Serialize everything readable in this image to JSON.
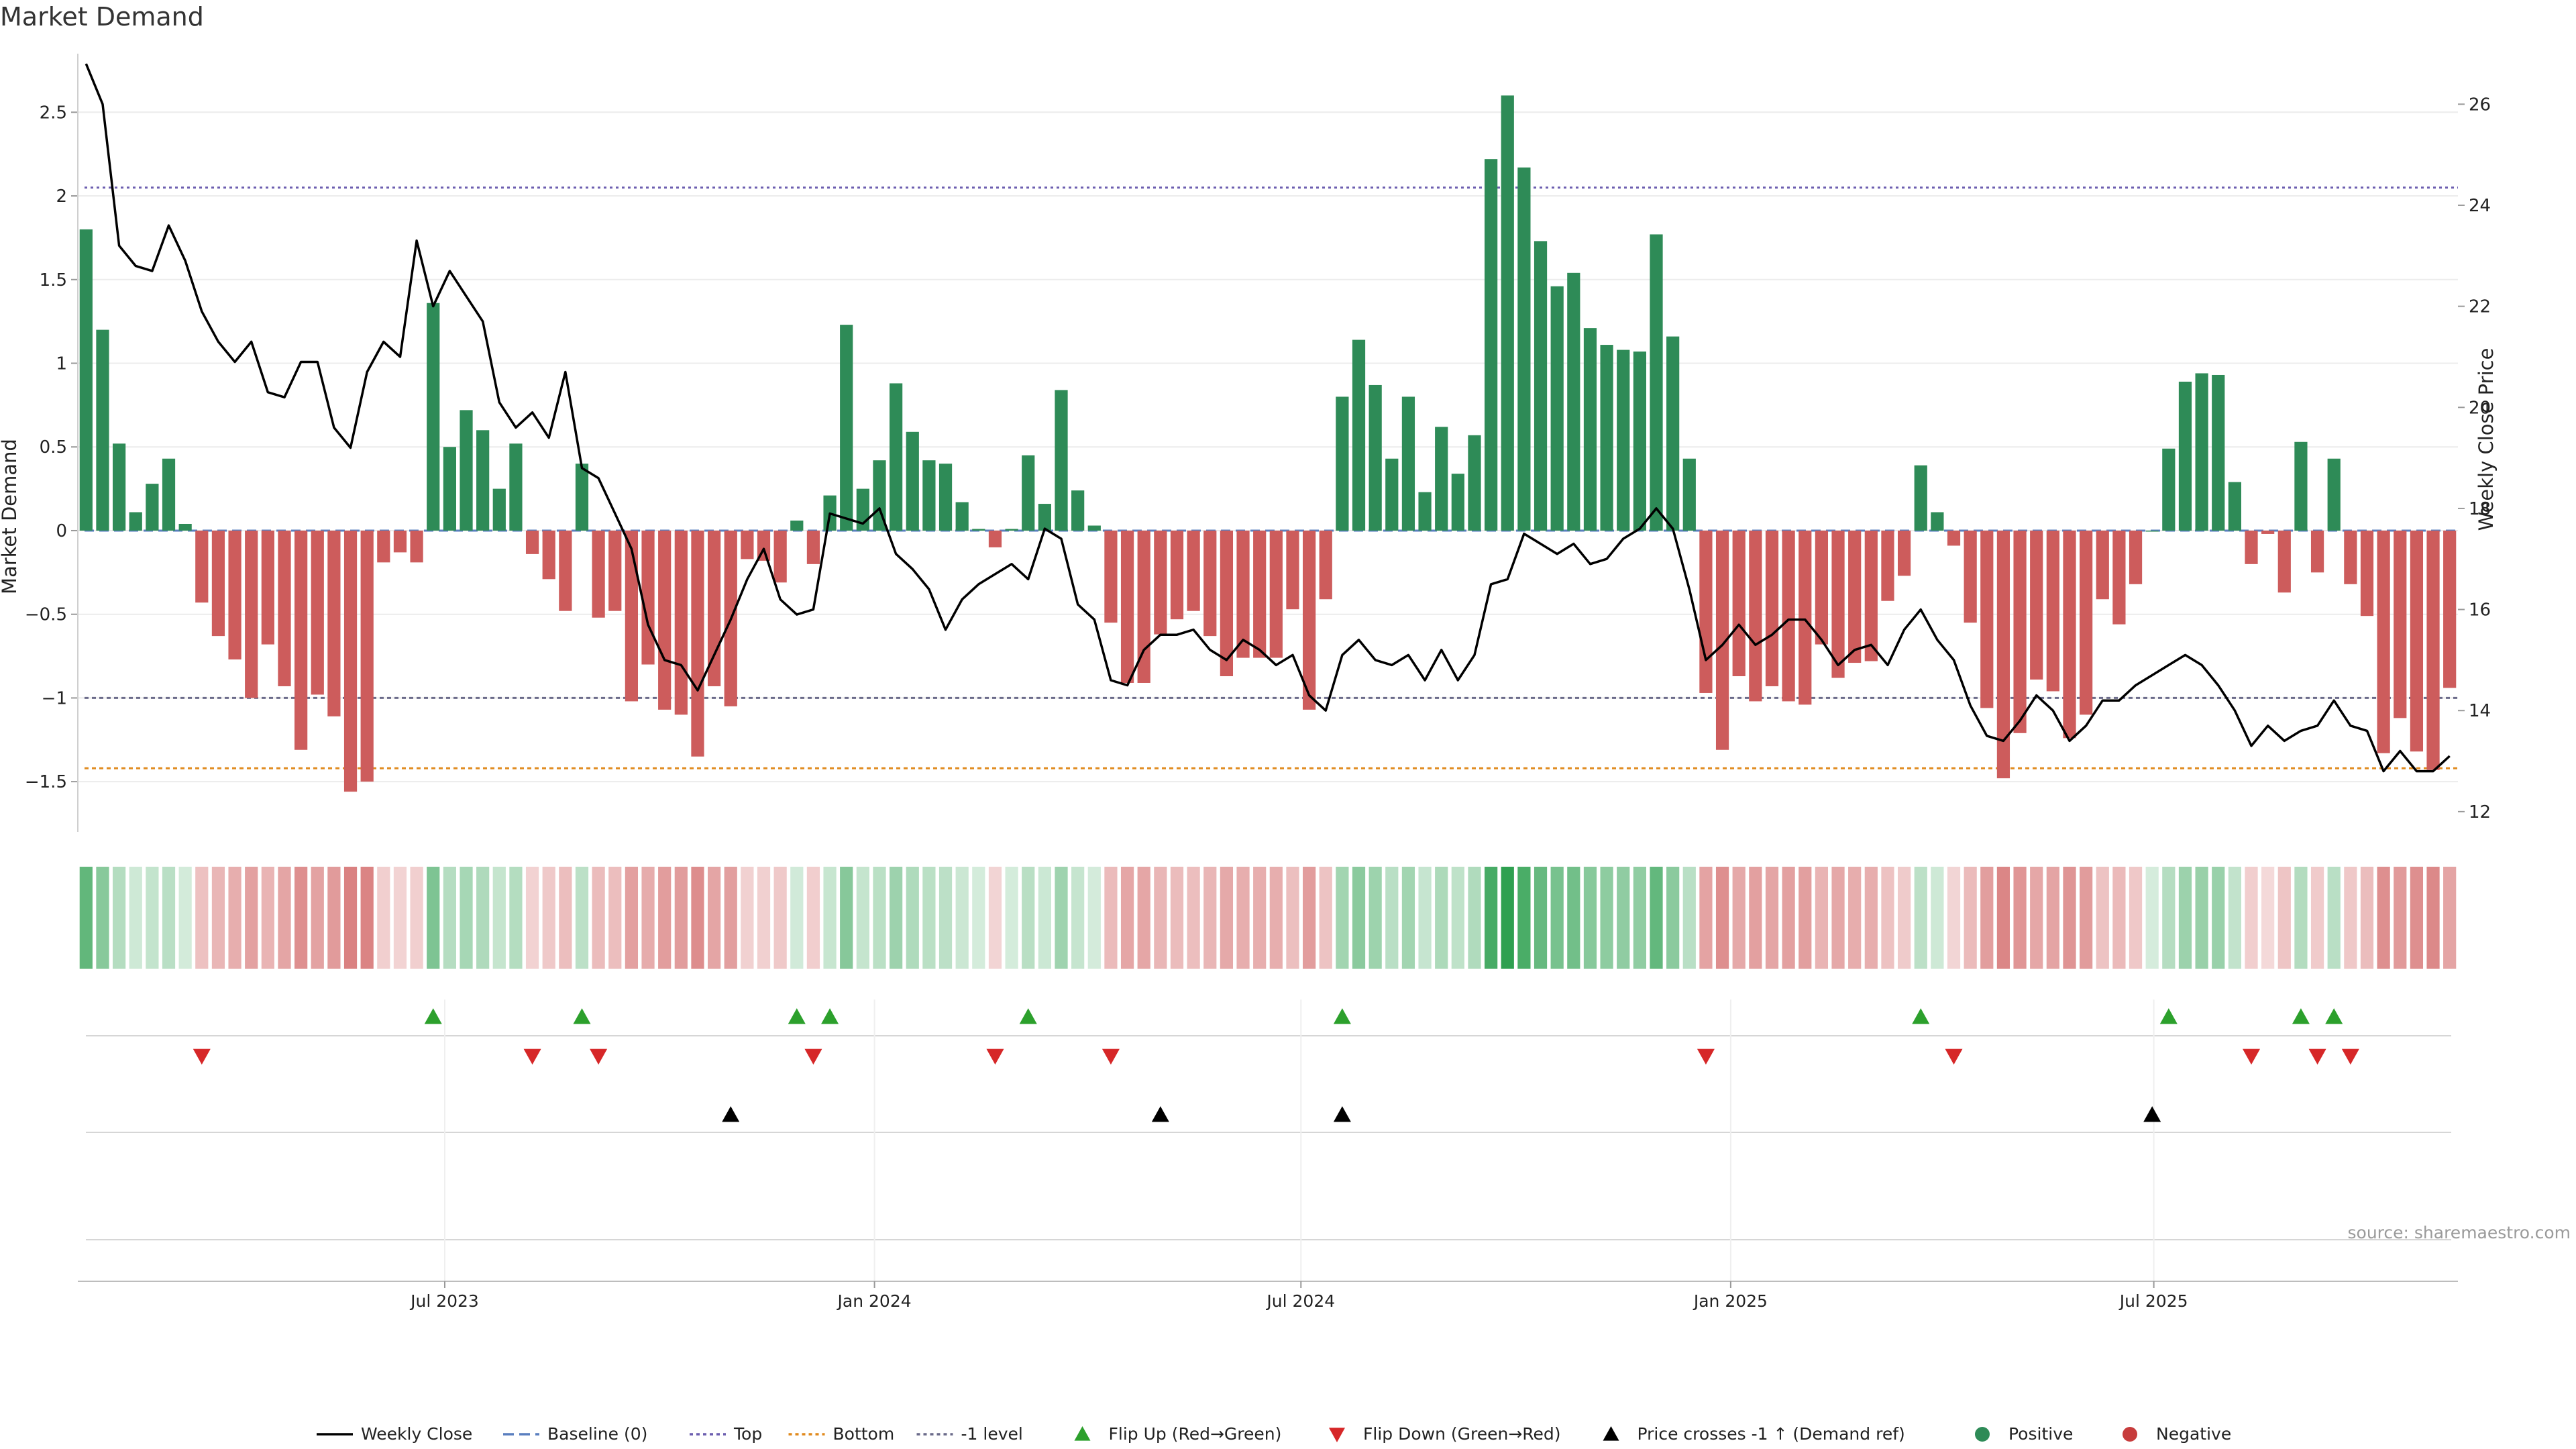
{
  "chart_data": {
    "type": "bar",
    "title": "Market Demand",
    "ylabel": "Market Demand",
    "y2label": "Weekly Close Price",
    "ylim": [
      -1.8,
      2.85
    ],
    "y2lim": [
      11.6,
      27.0
    ],
    "y_ticks": [
      -1.5,
      -1,
      -0.5,
      0,
      0.5,
      1,
      1.5,
      2,
      2.5
    ],
    "y_tick_labels": [
      "−1.5",
      "−1",
      "−0.5",
      "0",
      "0.5",
      "1",
      "1.5",
      "2",
      "2.5"
    ],
    "y2_ticks": [
      12,
      14,
      16,
      18,
      20,
      22,
      24,
      26
    ],
    "y2_tick_labels": [
      "12",
      "14",
      "16",
      "18",
      "20",
      "22",
      "24",
      "26"
    ],
    "x_ticks": [
      22.2,
      48.2,
      74.0,
      100.0,
      125.6
    ],
    "x_tick_labels": [
      "Jul 2023",
      "Jan 2024",
      "Jul 2024",
      "Jan 2025",
      "Jul 2025"
    ],
    "reference_lines": {
      "top": 2.05,
      "bottom": -1.42,
      "minus_one": -1.0
    },
    "demand": [
      1.8,
      1.2,
      0.52,
      0.11,
      0.28,
      0.43,
      0.04,
      -0.43,
      -0.63,
      -0.77,
      -1.0,
      -0.68,
      -0.93,
      -1.31,
      -0.98,
      -1.11,
      -1.56,
      -1.5,
      -0.19,
      -0.13,
      -0.19,
      1.36,
      0.5,
      0.72,
      0.6,
      0.25,
      0.52,
      -0.14,
      -0.29,
      -0.48,
      0.4,
      -0.52,
      -0.48,
      -1.02,
      -0.8,
      -1.07,
      -1.1,
      -1.35,
      -0.93,
      -1.05,
      -0.17,
      -0.18,
      -0.31,
      0.06,
      -0.2,
      0.21,
      1.23,
      0.25,
      0.42,
      0.88,
      0.59,
      0.42,
      0.4,
      0.17,
      0.01,
      -0.1,
      0.01,
      0.45,
      0.16,
      0.84,
      0.24,
      0.03,
      -0.55,
      -0.91,
      -0.91,
      -0.62,
      -0.53,
      -0.48,
      -0.63,
      -0.87,
      -0.76,
      -0.76,
      -0.76,
      -0.47,
      -1.07,
      -0.41,
      0.8,
      1.14,
      0.87,
      0.43,
      0.8,
      0.23,
      0.62,
      0.34,
      0.57,
      2.22,
      2.6,
      2.17,
      1.73,
      1.46,
      1.54,
      1.21,
      1.11,
      1.08,
      1.07,
      1.77,
      1.16,
      0.43,
      -0.97,
      -1.31,
      -0.87,
      -1.02,
      -0.93,
      -1.02,
      -1.04,
      -0.68,
      -0.88,
      -0.79,
      -0.78,
      -0.42,
      -0.27,
      0.39,
      0.11,
      -0.09,
      -0.55,
      -1.06,
      -1.48,
      -1.21,
      -0.89,
      -0.96,
      -1.24,
      -1.1,
      -0.41,
      -0.56,
      -0.32,
      0.0,
      0.49,
      0.89,
      0.94,
      0.93,
      0.29,
      -0.2,
      -0.02,
      -0.37,
      0.53,
      -0.25,
      0.43,
      -0.32,
      -0.51,
      -1.33,
      -1.12,
      -1.32,
      -1.43,
      -0.94
    ],
    "weekly_close": [
      26.8,
      26.0,
      23.2,
      22.8,
      22.7,
      23.6,
      22.9,
      21.9,
      21.3,
      20.9,
      21.3,
      20.3,
      20.2,
      20.9,
      20.9,
      19.6,
      19.2,
      20.7,
      21.3,
      21.0,
      23.3,
      22.0,
      22.7,
      22.2,
      21.7,
      20.1,
      19.6,
      19.9,
      19.4,
      20.7,
      18.8,
      18.6,
      17.9,
      17.2,
      15.7,
      15.0,
      14.9,
      14.4,
      15.1,
      15.8,
      16.6,
      17.2,
      16.2,
      15.9,
      16.0,
      17.9,
      17.8,
      17.7,
      18.0,
      17.1,
      16.8,
      16.4,
      15.6,
      16.2,
      16.5,
      16.7,
      16.9,
      16.6,
      17.6,
      17.4,
      16.1,
      15.8,
      14.6,
      14.5,
      15.2,
      15.5,
      15.5,
      15.6,
      15.2,
      15.0,
      15.4,
      15.2,
      14.9,
      15.1,
      14.3,
      14.0,
      15.1,
      15.4,
      15.0,
      14.9,
      15.1,
      14.6,
      15.2,
      14.6,
      15.1,
      16.5,
      16.6,
      17.5,
      17.3,
      17.1,
      17.3,
      16.9,
      17.0,
      17.4,
      17.6,
      18.0,
      17.6,
      16.4,
      15.0,
      15.3,
      15.7,
      15.3,
      15.5,
      15.8,
      15.8,
      15.4,
      14.9,
      15.2,
      15.3,
      14.9,
      15.6,
      16.0,
      15.4,
      15.0,
      14.1,
      13.5,
      13.4,
      13.8,
      14.3,
      14.0,
      13.4,
      13.7,
      14.2,
      14.2,
      14.5,
      14.7,
      14.9,
      15.1,
      14.9,
      14.5,
      14.0,
      13.3,
      13.7,
      13.4,
      13.6,
      13.7,
      14.2,
      13.7,
      13.6,
      12.8,
      13.2,
      12.8,
      12.8,
      13.1
    ],
    "flip_up": [
      21,
      30,
      43,
      45,
      57,
      76,
      111,
      126,
      134,
      136
    ],
    "flip_down": [
      7,
      27,
      31,
      44,
      55,
      62,
      98,
      113,
      131,
      135,
      137
    ],
    "price_cross": [
      39,
      65,
      76,
      125
    ],
    "legend": [
      {
        "label": "Weekly Close",
        "kind": "line",
        "color": "#000000"
      },
      {
        "label": "Baseline (0)",
        "kind": "dash",
        "color": "#5a7fbf"
      },
      {
        "label": "Top",
        "kind": "dot",
        "color": "#6d5fb0"
      },
      {
        "label": "Bottom",
        "kind": "dot",
        "color": "#e08a1e"
      },
      {
        "label": "-1 level",
        "kind": "dot",
        "color": "#6b6b8a"
      },
      {
        "label": "Flip Up (Red→Green)",
        "kind": "tri-up",
        "color": "#2ca02c"
      },
      {
        "label": "Flip Down (Green→Red)",
        "kind": "tri-down",
        "color": "#d62728"
      },
      {
        "label": "Price crosses -1 ↑ (Demand ref)",
        "kind": "tri-up",
        "color": "#000000"
      },
      {
        "label": "Positive",
        "kind": "circle",
        "color": "#2e8b57"
      },
      {
        "label": "Negative",
        "kind": "circle",
        "color": "#c73c3c"
      }
    ],
    "legend_position": "bottom-center"
  },
  "source_text": "source: sharemaestro.com",
  "colors": {
    "positive": "#2e8b57",
    "negative": "#cd5c5c",
    "flip_up": "#2ca02c",
    "flip_down": "#d62728",
    "price": "#000000"
  }
}
